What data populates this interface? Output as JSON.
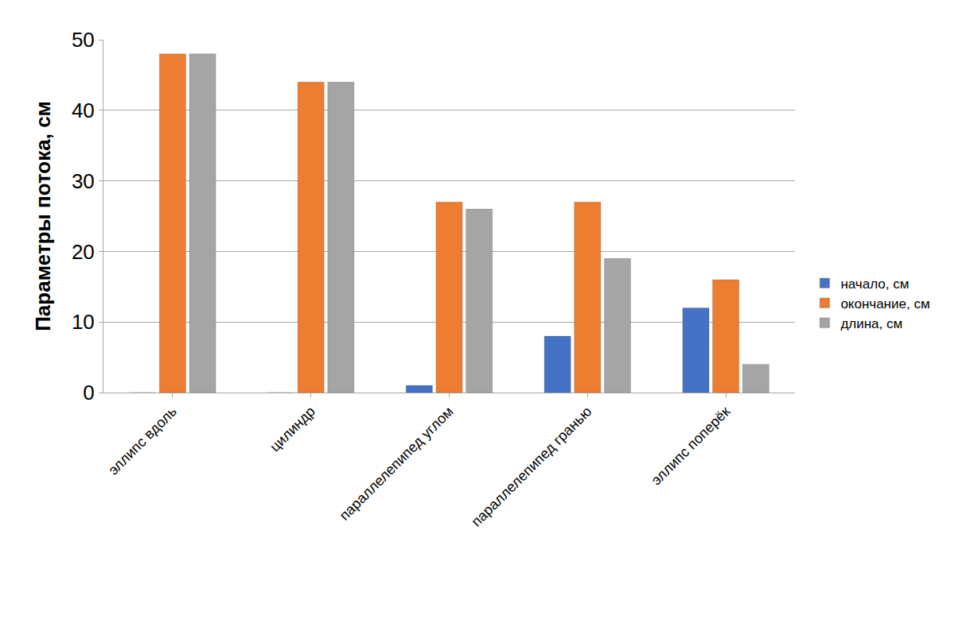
{
  "chart_data": {
    "type": "bar",
    "y_label": "Параметры потока, см",
    "categories": [
      "эллипс вдоль",
      "цилиндр",
      "параллелепипед углом",
      "параллелепипед гранью",
      "эллипс поперёк"
    ],
    "series": [
      {
        "name": "начало, см",
        "color": "#4472c4",
        "values": [
          0,
          0,
          1,
          8,
          12
        ]
      },
      {
        "name": "окончание, см",
        "color": "#ed7d31",
        "values": [
          48,
          44,
          27,
          27,
          16
        ]
      },
      {
        "name": "длина, см",
        "color": "#a5a5a5",
        "values": [
          48,
          44,
          26,
          19,
          4
        ]
      }
    ],
    "ylim": [
      0,
      50
    ],
    "yticks": [
      0,
      10,
      20,
      30,
      40,
      50
    ],
    "grid": true,
    "legend": "right"
  }
}
